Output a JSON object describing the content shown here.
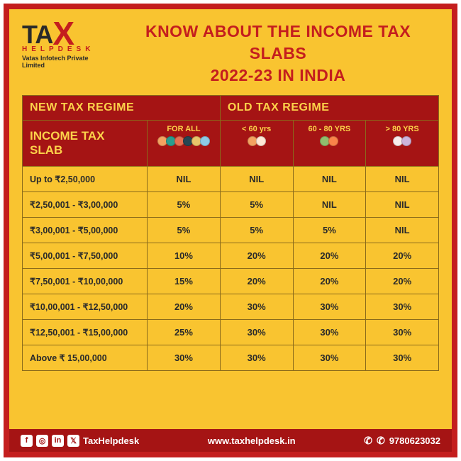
{
  "logo": {
    "main_a": "TA",
    "main_b": "X",
    "helpdesk": "HELPDESK",
    "company": "Vatas Infotech Private Limited"
  },
  "title_l1": "KNOW ABOUT THE INCOME TAX SLABS",
  "title_l2": "2022-23 IN INDIA",
  "headers": {
    "new_regime": "NEW TAX REGIME",
    "old_regime": "OLD TAX REGIME",
    "slab": "INCOME TAX SLAB",
    "for_all": "FOR ALL",
    "lt60": "< 60 yrs",
    "b6080": "60 - 80 YRS",
    "gt80": "> 80 YRS"
  },
  "avatar_colors": {
    "for_all": [
      "#f4a261",
      "#2a9d8f",
      "#e76f51",
      "#264653",
      "#e9c46a",
      "#8ecae6"
    ],
    "lt60": [
      "#f4a261",
      "#ffe8d6"
    ],
    "b6080": [
      "#90be6d",
      "#f9844a"
    ],
    "gt80": [
      "#f8edeb",
      "#cdb4db"
    ]
  },
  "rows": [
    {
      "slab": "Up to ₹2,50,000",
      "a": "NIL",
      "b": "NIL",
      "c": "NIL",
      "d": "NIL"
    },
    {
      "slab": "₹2,50,001 - ₹3,00,000",
      "a": "5%",
      "b": "5%",
      "c": "NIL",
      "d": "NIL"
    },
    {
      "slab": "₹3,00,001 - ₹5,00,000",
      "a": "5%",
      "b": "5%",
      "c": "5%",
      "d": "NIL"
    },
    {
      "slab": "₹5,00,001 - ₹7,50,000",
      "a": "10%",
      "b": "20%",
      "c": "20%",
      "d": "20%"
    },
    {
      "slab": "₹7,50,001 - ₹10,00,000",
      "a": "15%",
      "b": "20%",
      "c": "20%",
      "d": "20%"
    },
    {
      "slab": "₹10,00,001 - ₹12,50,000",
      "a": "20%",
      "b": "30%",
      "c": "30%",
      "d": "30%"
    },
    {
      "slab": "₹12,50,001 - ₹15,00,000",
      "a": "25%",
      "b": "30%",
      "c": "30%",
      "d": "30%"
    },
    {
      "slab": "Above ₹ 15,00,000",
      "a": "30%",
      "b": "30%",
      "c": "30%",
      "d": "30%"
    }
  ],
  "footer": {
    "handle": "TaxHelpdesk",
    "website": "www.taxhelpdesk.in",
    "phone": "9780623032"
  },
  "colors": {
    "border": "#c41e1e",
    "bg": "#f9c430",
    "header_bg": "#a51414",
    "header_fg": "#fcd24a",
    "cell_border": "#8a6a1a",
    "text": "#2a2a2a"
  }
}
